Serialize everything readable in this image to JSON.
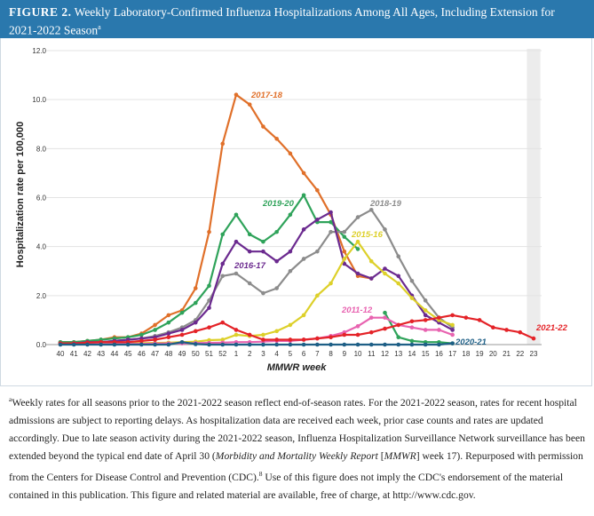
{
  "figure": {
    "label": "FIGURE 2.",
    "title": "Weekly Laboratory-Confirmed Influenza Hospitalizations Among All Ages, Including Extension for 2021-2022 Season",
    "title_sup": "a"
  },
  "footnote": {
    "marker": "a",
    "text_1": "Weekly rates for all seasons prior to the 2021-2022 season reflect end-of-season rates. For the 2021-2022 season, rates for recent hospital admissions are subject to reporting delays. As hospitalization data are received each week, prior case counts and rates are updated accordingly. Due to late season activity during the 2021-2022 season, Influenza Hospitalization Surveillance Network surveillance has been extended beyond the typical end date of April 30 (",
    "italic": "Morbidity and Mortality Weekly Report",
    "text_2": " [",
    "italic_2": "MMWR",
    "text_3": "] week 17).",
    "text_4": "Repurposed with permission from the Centers for Disease Control and Prevention (CDC).",
    "sup": "8",
    "text_5": " Use of this figure does not imply the CDC's endorsement of the material contained in this publication. This figure and related material are available, free of charge, at http://www.cdc.gov."
  },
  "chart_data": {
    "type": "line",
    "title": "Weekly Laboratory-Confirmed Influenza Hospitalizations Among All Ages, Including Extension for 2021-2022 Season",
    "xlabel": "MMWR week",
    "ylabel": "Hospitalization rate per 100,000",
    "ylim": [
      0,
      12
    ],
    "yticks": [
      "0.0",
      "2.0",
      "4.0",
      "6.0",
      "8.0",
      "10.0",
      "12.0"
    ],
    "x": [
      "40",
      "41",
      "42",
      "43",
      "44",
      "45",
      "46",
      "47",
      "48",
      "49",
      "50",
      "51",
      "52",
      "1",
      "2",
      "3",
      "4",
      "5",
      "6",
      "7",
      "8",
      "9",
      "10",
      "11",
      "12",
      "13",
      "14",
      "15",
      "16",
      "17",
      "18",
      "19",
      "20",
      "21",
      "22",
      "23"
    ],
    "shaded_weeks": [
      "23"
    ],
    "series": [
      {
        "name": "2017-18",
        "color": "#e0702a",
        "values": [
          0.1,
          0.1,
          0.15,
          0.2,
          0.3,
          0.3,
          0.45,
          0.8,
          1.2,
          1.4,
          2.3,
          4.6,
          8.2,
          10.2,
          9.8,
          8.9,
          8.4,
          7.8,
          7.0,
          6.3,
          5.3,
          3.8,
          2.8,
          2.7,
          null,
          null,
          null,
          null,
          null,
          null,
          null,
          null,
          null,
          null,
          null,
          null
        ]
      },
      {
        "name": "2019-20",
        "color": "#2fa35a",
        "values": [
          0.1,
          0.1,
          0.15,
          0.2,
          0.25,
          0.3,
          0.4,
          0.6,
          0.9,
          1.3,
          1.7,
          2.4,
          4.5,
          5.3,
          4.5,
          4.2,
          4.6,
          5.3,
          6.1,
          5.0,
          5.0,
          4.4,
          3.9,
          null,
          1.3,
          0.3,
          0.15,
          0.1,
          0.1,
          0.05,
          null,
          null,
          null,
          null,
          null,
          null
        ]
      },
      {
        "name": "2018-19",
        "color": "#8c8c8c",
        "values": [
          0.05,
          0.05,
          0.1,
          0.1,
          0.15,
          0.2,
          0.25,
          0.35,
          0.5,
          0.7,
          1.0,
          1.8,
          2.8,
          2.9,
          2.5,
          2.1,
          2.3,
          3.0,
          3.5,
          3.8,
          4.6,
          4.6,
          5.2,
          5.5,
          4.7,
          3.6,
          2.6,
          1.8,
          1.1,
          0.7,
          null,
          null,
          null,
          null,
          null,
          null
        ]
      },
      {
        "name": "2016-17",
        "color": "#6b2a8f",
        "values": [
          0.05,
          0.05,
          0.1,
          0.1,
          0.15,
          0.2,
          0.25,
          0.3,
          0.45,
          0.6,
          0.9,
          1.5,
          3.3,
          4.2,
          3.8,
          3.8,
          3.4,
          3.8,
          4.7,
          5.1,
          5.4,
          3.3,
          2.9,
          2.7,
          3.1,
          2.8,
          2.0,
          1.2,
          0.9,
          0.6,
          null,
          null,
          null,
          null,
          null,
          null
        ]
      },
      {
        "name": "2015-16",
        "color": "#ddd02a",
        "values": [
          0.02,
          0.02,
          0.03,
          0.03,
          0.04,
          0.05,
          0.06,
          0.07,
          0.08,
          0.1,
          0.12,
          0.18,
          0.2,
          0.4,
          0.35,
          0.4,
          0.55,
          0.8,
          1.2,
          2.0,
          2.5,
          3.5,
          4.2,
          3.4,
          2.9,
          2.5,
          1.9,
          1.4,
          1.0,
          0.8,
          null,
          null,
          null,
          null,
          null,
          null
        ]
      },
      {
        "name": "2011-12",
        "color": "#e863b0",
        "values": [
          0.02,
          0.02,
          0.02,
          0.02,
          0.03,
          0.03,
          0.03,
          0.04,
          0.05,
          0.05,
          0.06,
          0.07,
          0.08,
          0.1,
          0.1,
          0.12,
          0.15,
          0.15,
          0.2,
          0.25,
          0.35,
          0.5,
          0.75,
          1.1,
          1.1,
          0.8,
          0.7,
          0.6,
          0.6,
          0.4,
          null,
          null,
          null,
          null,
          null,
          null
        ]
      },
      {
        "name": "2021-22",
        "color": "#e42328",
        "values": [
          0.05,
          0.05,
          0.08,
          0.1,
          0.1,
          0.1,
          0.15,
          0.2,
          0.3,
          0.4,
          0.55,
          0.7,
          0.9,
          0.6,
          0.4,
          0.2,
          0.2,
          0.2,
          0.2,
          0.25,
          0.3,
          0.4,
          0.4,
          0.5,
          0.65,
          0.8,
          0.95,
          1.0,
          1.1,
          1.2,
          1.1,
          1.0,
          0.7,
          0.6,
          0.5,
          0.25
        ]
      },
      {
        "name": "2020-21",
        "color": "#1e5f86",
        "values": [
          0.0,
          0.0,
          0.0,
          0.0,
          0.0,
          0.0,
          0.0,
          0.0,
          0.0,
          0.1,
          0.02,
          0.0,
          0.0,
          0.0,
          0.0,
          0.0,
          0.0,
          0.0,
          0.0,
          0.0,
          0.0,
          0.0,
          0.0,
          0.0,
          0.0,
          0.0,
          0.0,
          0.0,
          0.0,
          0.05,
          null,
          null,
          null,
          null,
          null,
          null
        ]
      }
    ],
    "series_labels": [
      {
        "name": "2017-18",
        "text": "2017-18"
      },
      {
        "name": "2019-20",
        "text": "2019-20"
      },
      {
        "name": "2018-19",
        "text": "2018-19"
      },
      {
        "name": "2016-17",
        "text": "2016-17"
      },
      {
        "name": "2015-16",
        "text": "2015-16"
      },
      {
        "name": "2011-12",
        "text": "2011-12"
      },
      {
        "name": "2021-22",
        "text": "2021-22"
      },
      {
        "name": "2020-21",
        "text": "2020-21"
      }
    ]
  }
}
